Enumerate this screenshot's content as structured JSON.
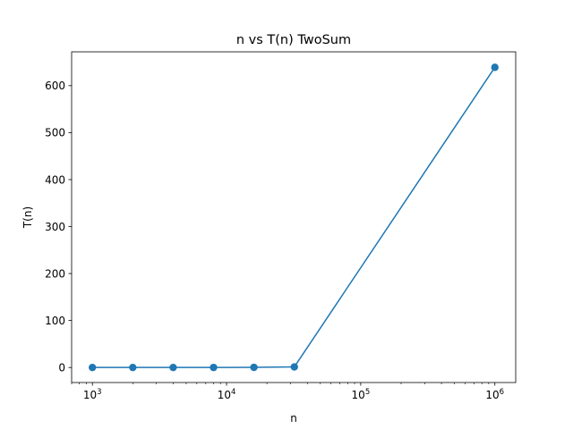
{
  "chart_data": {
    "type": "line",
    "title": "n vs T(n) TwoSum",
    "xlabel": "n",
    "ylabel": "T(n)",
    "xscale": "log",
    "xlim": [
      700,
      1430000
    ],
    "ylim": [
      -32,
      672
    ],
    "x_ticks": [
      {
        "base": "10",
        "exp": "3",
        "value": 1000
      },
      {
        "base": "10",
        "exp": "4",
        "value": 10000
      },
      {
        "base": "10",
        "exp": "5",
        "value": 100000
      },
      {
        "base": "10",
        "exp": "6",
        "value": 1000000
      }
    ],
    "y_ticks": [
      0,
      100,
      200,
      300,
      400,
      500,
      600
    ],
    "grid": false,
    "legend": "none",
    "series": [
      {
        "color": "#1f77b4",
        "marker": "circle",
        "x": [
          1000,
          2000,
          4000,
          8000,
          16000,
          32000,
          1000000
        ],
        "y": [
          0.0,
          0.01,
          0.02,
          0.08,
          0.3,
          1.2,
          639
        ]
      }
    ]
  }
}
